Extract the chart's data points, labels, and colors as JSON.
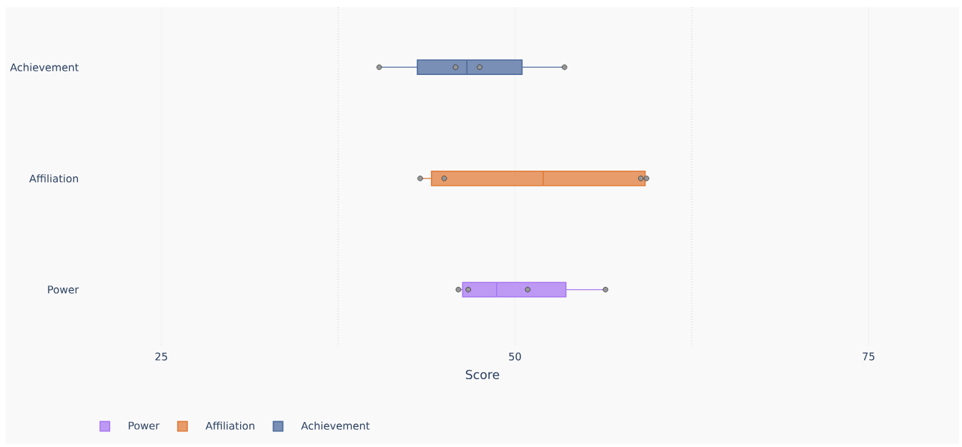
{
  "chart_data": {
    "type": "box",
    "orientation": "horizontal",
    "xlabel": "Score",
    "categories": [
      "Achievement",
      "Affiliation",
      "Power"
    ],
    "xlim": [
      14.1,
      81.3
    ],
    "xticks": [
      25,
      50,
      75
    ],
    "grid": "x",
    "legend": "bottom left",
    "ref_lines": [
      {
        "axis": "x",
        "value": 37.5,
        "line_style": "dotted",
        "color": "#cccccc"
      },
      {
        "axis": "x",
        "value": 62.5,
        "line_style": "dotted",
        "color": "#cccccc"
      }
    ],
    "series": [
      {
        "name": "Power",
        "color": "#a777f0",
        "boxes": [
          null,
          null,
          {
            "low": 46.0,
            "q1": 46.3,
            "median": 48.7,
            "q3": 53.6,
            "high": 56.4,
            "outliers": [
              46.0,
              46.7,
              50.9,
              56.4
            ]
          }
        ]
      },
      {
        "name": "Affiliation",
        "color": "#e07b39",
        "boxes": [
          null,
          {
            "low": 43.3,
            "q1": 44.1,
            "median": 52.0,
            "q3": 59.2,
            "high": 59.3,
            "outliers": [
              43.3,
              45.0,
              58.9,
              59.3
            ]
          },
          null
        ]
      },
      {
        "name": "Achievement",
        "color": "#4c6a9c",
        "boxes": [
          {
            "low": 40.4,
            "q1": 43.1,
            "median": 46.6,
            "q3": 50.5,
            "high": 53.5,
            "outliers": [
              40.4,
              45.8,
              47.5,
              53.5
            ]
          },
          null,
          null
        ]
      }
    ]
  }
}
